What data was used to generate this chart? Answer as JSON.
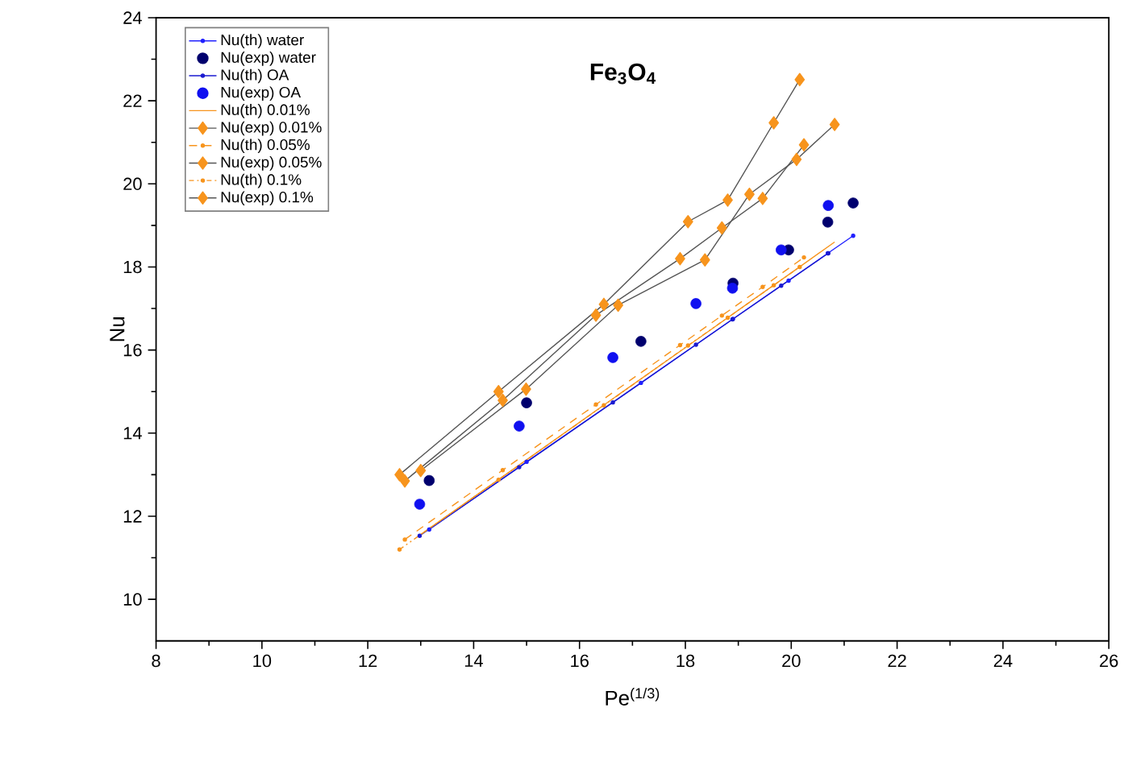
{
  "chart_data": {
    "type": "scatter",
    "xlabel": "Pe$^{(1/3)}$",
    "ylabel": "Nu",
    "annotations": [
      "Fe$_{3}$O$_{4}$"
    ],
    "xlim": [
      8,
      26
    ],
    "ylim": [
      9,
      24
    ],
    "xticks": [
      8,
      10,
      12,
      14,
      16,
      18,
      20,
      22,
      24,
      26
    ],
    "yticks": [
      10,
      12,
      14,
      16,
      18,
      20,
      22,
      24
    ],
    "grid": false,
    "legend": "top left",
    "series": [
      {
        "name": "Nu(th) water",
        "type": "line",
        "color": "#2020ff",
        "marker": "circle",
        "line_style": "solid",
        "x": [
          13.16,
          15.0,
          17.16,
          18.9,
          19.95,
          20.69,
          21.17
        ],
        "values": [
          11.68,
          13.31,
          15.21,
          16.75,
          17.67,
          18.33,
          18.75
        ]
      },
      {
        "name": "Nu(exp) water",
        "color": "#00006e",
        "marker": "circle",
        "x": [
          13.16,
          15.0,
          17.16,
          18.9,
          19.95,
          20.69,
          21.17
        ],
        "values": [
          12.86,
          14.73,
          16.21,
          17.61,
          18.41,
          19.08,
          19.54
        ]
      },
      {
        "name": "Nu(th) OA",
        "type": "line",
        "color": "#1a1ad0",
        "marker": "circle",
        "line_style": "solid",
        "x": [
          12.98,
          14.86,
          16.63,
          18.2,
          18.89,
          19.81,
          20.7
        ],
        "values": [
          11.53,
          13.18,
          14.74,
          16.13,
          16.74,
          17.55,
          18.33
        ]
      },
      {
        "name": "Nu(exp) OA",
        "color": "#1010f0",
        "marker": "circle",
        "x": [
          12.98,
          14.86,
          16.63,
          18.2,
          18.89,
          19.81,
          20.7
        ],
        "values": [
          12.29,
          14.17,
          15.82,
          17.12,
          17.49,
          18.41,
          19.48
        ]
      },
      {
        "name": "Nu(th) 0.01%",
        "type": "line",
        "color": "#f7941d",
        "marker": "none",
        "line_style": "solid",
        "x": [
          13.0,
          14.99,
          16.73,
          18.37,
          19.21,
          20.1,
          20.82
        ],
        "values": [
          11.56,
          13.35,
          14.92,
          16.39,
          17.15,
          17.95,
          18.6
        ]
      },
      {
        "name": "Nu(exp) 0.01%",
        "type": "line",
        "color": "#f7941d",
        "marker": "diamond",
        "line_style": "solid",
        "x": [
          13.0,
          14.99,
          16.73,
          18.37,
          19.21,
          20.1,
          20.82
        ],
        "values": [
          13.1,
          15.06,
          17.08,
          18.17,
          19.75,
          20.59,
          21.43
        ]
      },
      {
        "name": "Nu(th) 0.05%",
        "type": "line",
        "color": "#f7941d",
        "marker": "circle",
        "line_style": "dashed",
        "x": [
          12.7,
          14.55,
          16.31,
          17.9,
          18.69,
          19.46,
          20.24
        ],
        "values": [
          11.44,
          13.11,
          14.69,
          16.12,
          16.83,
          17.52,
          18.23
        ]
      },
      {
        "name": "Nu(exp) 0.05%",
        "type": "line",
        "color": "#f7941d",
        "marker": "diamond",
        "line_style": "solid",
        "x": [
          12.7,
          14.55,
          16.31,
          17.9,
          18.69,
          19.46,
          20.24
        ],
        "values": [
          12.85,
          14.79,
          16.84,
          18.2,
          18.94,
          19.65,
          20.94
        ]
      },
      {
        "name": "Nu(th) 0.1%",
        "type": "line",
        "color": "#f7941d",
        "marker": "circle",
        "line_style": "dotted",
        "x": [
          12.6,
          14.47,
          16.46,
          18.05,
          18.8,
          19.67,
          20.16
        ],
        "values": [
          11.2,
          12.88,
          14.67,
          16.11,
          16.78,
          17.56,
          18.0
        ]
      },
      {
        "name": "Nu(exp) 0.1%",
        "type": "line",
        "color": "#f7941d",
        "marker": "diamond",
        "line_style": "solid",
        "x": [
          12.6,
          14.47,
          16.46,
          18.05,
          18.8,
          19.67,
          20.16
        ],
        "values": [
          13.0,
          15.0,
          17.1,
          19.09,
          19.61,
          21.47,
          22.51
        ]
      }
    ]
  }
}
